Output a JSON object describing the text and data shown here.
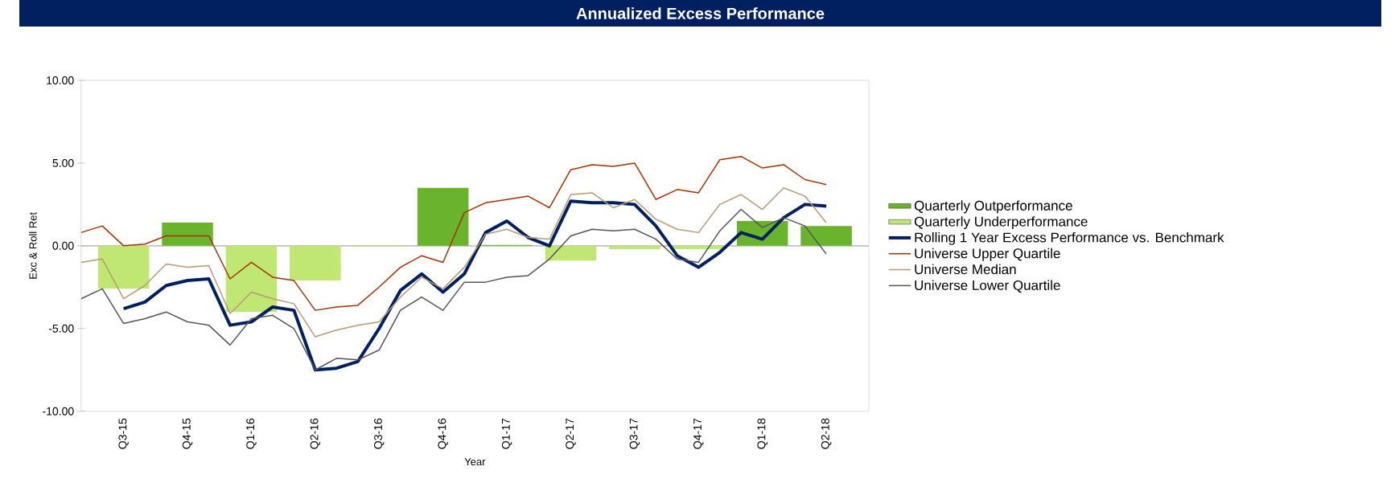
{
  "chart_data": {
    "type": "bar",
    "title": "Annualized Excess Performance",
    "xlabel": "Year",
    "ylabel": "Exc & Roll Ret",
    "xlim": [
      "2015-07",
      "2018-08"
    ],
    "ylim": [
      -10,
      10
    ],
    "xticks": [
      {
        "value": "2015-09",
        "label": "Q3-15"
      },
      {
        "value": "2015-12",
        "label": "Q4-15"
      },
      {
        "value": "2016-03",
        "label": "Q1-16"
      },
      {
        "value": "2016-06",
        "label": "Q2-16"
      },
      {
        "value": "2016-09",
        "label": "Q3-16"
      },
      {
        "value": "2016-12",
        "label": "Q4-16"
      },
      {
        "value": "2017-03",
        "label": "Q1-17"
      },
      {
        "value": "2017-06",
        "label": "Q2-17"
      },
      {
        "value": "2017-09",
        "label": "Q3-17"
      },
      {
        "value": "2017-12",
        "label": "Q4-17"
      },
      {
        "value": "2018-03",
        "label": "Q1-18"
      },
      {
        "value": "2018-06",
        "label": "Q2-18"
      }
    ],
    "yticks": [
      {
        "value": -10,
        "label": "-10.00"
      },
      {
        "value": -5,
        "label": "-5.00"
      },
      {
        "value": 0,
        "label": "0.00"
      },
      {
        "value": 5,
        "label": "5.00"
      },
      {
        "value": 10,
        "label": "10.00"
      }
    ],
    "x": [
      "2015-09",
      "2015-12",
      "2016-03",
      "2016-06",
      "2016-09",
      "2016-12",
      "2017-03",
      "2017-06",
      "2017-09",
      "2017-12",
      "2018-03",
      "2018-06"
    ],
    "series": [
      {
        "name": "Quarterly Outperformance",
        "color": "#6ab42d",
        "values": [
          null,
          1.4,
          null,
          null,
          null,
          3.5,
          0.05,
          null,
          null,
          null,
          1.5,
          1.2
        ]
      },
      {
        "name": "Quarterly Underperformance",
        "color": "#c0e673",
        "values": [
          -2.6,
          null,
          -4.0,
          -2.1,
          -0.05,
          null,
          null,
          -0.9,
          -0.2,
          -0.2,
          null,
          null
        ]
      },
      {
        "name": "Rolling 1 Year Excess Performance vs. Benchmark",
        "type": "line",
        "color": "#002060",
        "x": [
          "2015-09",
          "2015-10",
          "2015-11",
          "2015-12",
          "2016-01",
          "2016-02",
          "2016-03",
          "2016-04",
          "2016-05",
          "2016-06",
          "2016-07",
          "2016-08",
          "2016-09",
          "2016-10",
          "2016-11",
          "2016-12",
          "2017-01",
          "2017-02",
          "2017-03",
          "2017-04",
          "2017-05",
          "2017-06",
          "2017-07",
          "2017-08",
          "2017-09",
          "2017-10",
          "2017-11",
          "2017-12",
          "2018-01",
          "2018-02",
          "2018-03",
          "2018-04",
          "2018-05",
          "2018-06"
        ],
        "values": [
          -3.8,
          -3.4,
          -2.4,
          -2.1,
          -2.0,
          -4.8,
          -4.6,
          -3.7,
          -3.9,
          -7.5,
          -7.4,
          -7.0,
          -5.0,
          -2.7,
          -1.7,
          -2.8,
          -1.7,
          0.8,
          1.5,
          0.5,
          0.0,
          2.7,
          2.6,
          2.6,
          2.5,
          1.2,
          -0.6,
          -1.3,
          -0.4,
          0.8,
          0.4,
          1.7,
          2.5,
          2.4
        ]
      },
      {
        "name": "Universe Upper Quartile",
        "type": "line",
        "color": "#a83200",
        "x": [
          "2015-07",
          "2015-08",
          "2015-09",
          "2015-10",
          "2015-11",
          "2015-12",
          "2016-01",
          "2016-02",
          "2016-03",
          "2016-04",
          "2016-05",
          "2016-06",
          "2016-07",
          "2016-08",
          "2016-09",
          "2016-10",
          "2016-11",
          "2016-12",
          "2017-01",
          "2017-02",
          "2017-03",
          "2017-04",
          "2017-05",
          "2017-06",
          "2017-07",
          "2017-08",
          "2017-09",
          "2017-10",
          "2017-11",
          "2017-12",
          "2018-01",
          "2018-02",
          "2018-03",
          "2018-04",
          "2018-05",
          "2018-06"
        ],
        "values": [
          0.8,
          1.2,
          0.0,
          0.1,
          0.6,
          0.6,
          0.6,
          -2.0,
          -1.0,
          -1.9,
          -2.1,
          -3.9,
          -3.7,
          -3.6,
          -2.5,
          -1.3,
          -0.6,
          -1.0,
          2.0,
          2.6,
          2.8,
          3.0,
          2.3,
          4.6,
          4.9,
          4.8,
          5.0,
          2.8,
          3.4,
          3.2,
          5.2,
          5.4,
          4.7,
          4.9,
          4.0,
          3.7
        ]
      },
      {
        "name": "Universe Median",
        "type": "line",
        "color": "#b89a74",
        "x": [
          "2015-07",
          "2015-08",
          "2015-09",
          "2015-10",
          "2015-11",
          "2015-12",
          "2016-01",
          "2016-02",
          "2016-03",
          "2016-04",
          "2016-05",
          "2016-06",
          "2016-07",
          "2016-08",
          "2016-09",
          "2016-10",
          "2016-11",
          "2016-12",
          "2017-01",
          "2017-02",
          "2017-03",
          "2017-04",
          "2017-05",
          "2017-06",
          "2017-07",
          "2017-08",
          "2017-09",
          "2017-10",
          "2017-11",
          "2017-12",
          "2018-01",
          "2018-02",
          "2018-03",
          "2018-04",
          "2018-05",
          "2018-06"
        ],
        "values": [
          -1.0,
          -0.8,
          -3.2,
          -2.4,
          -1.1,
          -1.3,
          -1.2,
          -4.1,
          -2.8,
          -3.2,
          -3.5,
          -5.5,
          -5.1,
          -4.8,
          -4.6,
          -3.1,
          -1.9,
          -2.6,
          -1.3,
          0.7,
          1.0,
          0.5,
          0.4,
          3.1,
          3.2,
          2.3,
          2.8,
          1.6,
          1.0,
          0.8,
          2.5,
          3.1,
          2.2,
          3.5,
          3.0,
          1.4
        ]
      },
      {
        "name": "Universe Lower Quartile",
        "type": "line",
        "color": "#555555",
        "x": [
          "2015-07",
          "2015-08",
          "2015-09",
          "2015-10",
          "2015-11",
          "2015-12",
          "2016-01",
          "2016-02",
          "2016-03",
          "2016-04",
          "2016-05",
          "2016-06",
          "2016-07",
          "2016-08",
          "2016-09",
          "2016-10",
          "2016-11",
          "2016-12",
          "2017-01",
          "2017-02",
          "2017-03",
          "2017-04",
          "2017-05",
          "2017-06",
          "2017-07",
          "2017-08",
          "2017-09",
          "2017-10",
          "2017-11",
          "2017-12",
          "2018-01",
          "2018-02",
          "2018-03",
          "2018-04",
          "2018-05",
          "2018-06"
        ],
        "values": [
          -3.2,
          -2.6,
          -4.7,
          -4.4,
          -4.0,
          -4.6,
          -4.8,
          -6.0,
          -4.4,
          -4.2,
          -5.0,
          -7.5,
          -6.8,
          -6.9,
          -6.3,
          -3.9,
          -3.1,
          -3.9,
          -2.2,
          -2.2,
          -1.9,
          -1.8,
          -0.8,
          0.6,
          1.0,
          0.9,
          1.0,
          0.4,
          -0.8,
          -1.0,
          0.9,
          2.2,
          1.1,
          1.7,
          1.2,
          -0.5
        ]
      }
    ],
    "ref_lines": [
      {
        "axis": "y",
        "value": 0,
        "color": "#999999"
      }
    ],
    "legend": "right"
  }
}
